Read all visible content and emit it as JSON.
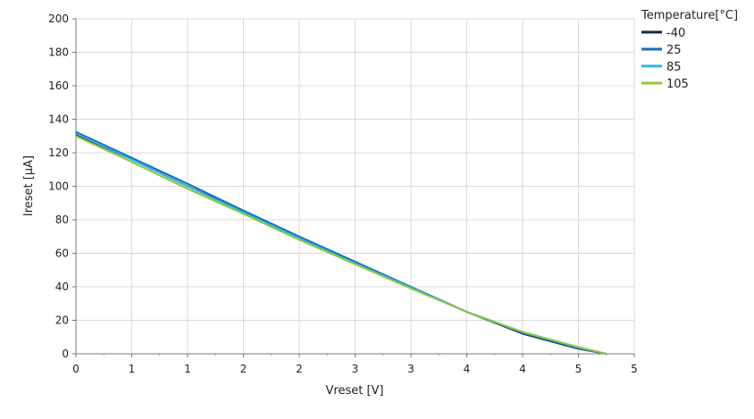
{
  "chart_data": {
    "type": "line",
    "xlabel": "Vreset [V]",
    "ylabel": "Ireset [µA]",
    "x_ticks": [
      "0",
      "1",
      "1",
      "2",
      "2",
      "3",
      "3",
      "4",
      "4",
      "5",
      "5"
    ],
    "x_tick_positions": [
      0,
      0.5,
      1,
      1.5,
      2,
      2.5,
      3,
      3.5,
      4,
      4.5,
      5
    ],
    "xlim": [
      0,
      5
    ],
    "ylim": [
      0,
      200
    ],
    "y_ticks": [
      0,
      20,
      40,
      60,
      80,
      100,
      120,
      140,
      160,
      180,
      200
    ],
    "grid": true,
    "legend": {
      "title": "Temperature[°C]",
      "position": "top-right"
    },
    "series": [
      {
        "name": "-40",
        "color": "#0b2a4a",
        "points": [
          [
            0,
            131
          ],
          [
            0.5,
            116
          ],
          [
            1,
            100
          ],
          [
            1.5,
            85
          ],
          [
            2,
            69.5
          ],
          [
            2.5,
            54.5
          ],
          [
            3,
            39.5
          ],
          [
            3.5,
            25
          ],
          [
            4,
            12
          ],
          [
            4.5,
            3
          ],
          [
            4.75,
            0
          ]
        ]
      },
      {
        "name": "25",
        "color": "#1a6db5",
        "points": [
          [
            0,
            132.5
          ],
          [
            0.5,
            117
          ],
          [
            1,
            101.5
          ],
          [
            1.5,
            85.5
          ],
          [
            2,
            70
          ],
          [
            2.5,
            55
          ],
          [
            3,
            40
          ],
          [
            3.5,
            25
          ],
          [
            4,
            12.5
          ],
          [
            4.5,
            3.3
          ],
          [
            4.75,
            0
          ]
        ]
      },
      {
        "name": "85",
        "color": "#2bb5ea",
        "points": [
          [
            0,
            131.5
          ],
          [
            0.5,
            116
          ],
          [
            1,
            100
          ],
          [
            1.5,
            84.5
          ],
          [
            2,
            69
          ],
          [
            2.5,
            54
          ],
          [
            3,
            39.5
          ],
          [
            3.5,
            25
          ],
          [
            4,
            13
          ],
          [
            4.5,
            3.8
          ],
          [
            4.75,
            0
          ]
        ]
      },
      {
        "name": "105",
        "color": "#8dc63f",
        "points": [
          [
            0,
            130
          ],
          [
            0.5,
            114.5
          ],
          [
            1,
            98.5
          ],
          [
            1.5,
            83.5
          ],
          [
            2,
            68
          ],
          [
            2.5,
            53.5
          ],
          [
            3,
            39
          ],
          [
            3.5,
            25
          ],
          [
            4,
            13
          ],
          [
            4.5,
            4
          ],
          [
            4.75,
            0
          ]
        ]
      }
    ]
  }
}
